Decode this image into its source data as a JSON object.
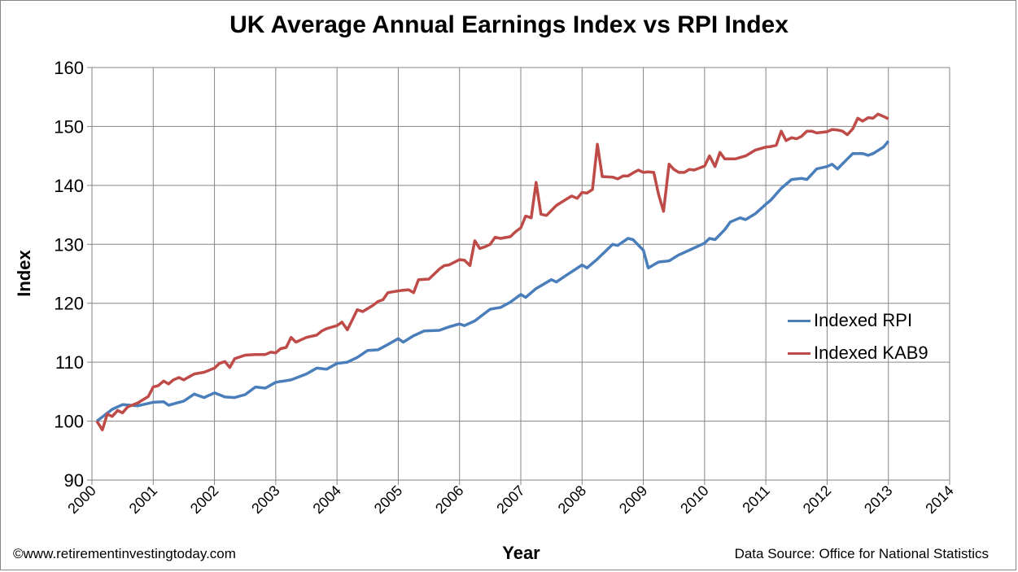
{
  "chart_data": {
    "type": "line",
    "title": "UK Average Annual Earnings Index vs RPI Index",
    "xlabel": "Year",
    "ylabel": "Index",
    "xlim": [
      2000,
      2014
    ],
    "ylim": [
      90,
      160
    ],
    "x_ticks": [
      "2000",
      "2001",
      "2002",
      "2003",
      "2004",
      "2005",
      "2006",
      "2007",
      "2008",
      "2009",
      "2010",
      "2011",
      "2012",
      "2013",
      "2014"
    ],
    "y_ticks": [
      "90",
      "100",
      "110",
      "120",
      "130",
      "140",
      "150",
      "160"
    ],
    "grid": true,
    "legend_position": "right",
    "series": [
      {
        "name": "Indexed RPI",
        "color": "#4a7ebb",
        "points": [
          [
            2000.08,
            100
          ],
          [
            2000.33,
            102
          ],
          [
            2000.5,
            102.8
          ],
          [
            2000.75,
            102.6
          ],
          [
            2001.0,
            103.2
          ],
          [
            2001.17,
            103.3
          ],
          [
            2001.25,
            102.7
          ],
          [
            2001.5,
            103.4
          ],
          [
            2001.67,
            104.6
          ],
          [
            2001.83,
            104.0
          ],
          [
            2002.0,
            104.8
          ],
          [
            2002.17,
            104.1
          ],
          [
            2002.33,
            104.0
          ],
          [
            2002.5,
            104.5
          ],
          [
            2002.67,
            105.8
          ],
          [
            2002.83,
            105.6
          ],
          [
            2003.0,
            106.6
          ],
          [
            2003.25,
            107.0
          ],
          [
            2003.5,
            108.0
          ],
          [
            2003.67,
            109.0
          ],
          [
            2003.83,
            108.8
          ],
          [
            2004.0,
            109.8
          ],
          [
            2004.17,
            110.0
          ],
          [
            2004.33,
            110.8
          ],
          [
            2004.5,
            112.0
          ],
          [
            2004.67,
            112.1
          ],
          [
            2004.83,
            113.0
          ],
          [
            2005.0,
            114.0
          ],
          [
            2005.08,
            113.4
          ],
          [
            2005.25,
            114.5
          ],
          [
            2005.42,
            115.3
          ],
          [
            2005.67,
            115.4
          ],
          [
            2005.83,
            116.0
          ],
          [
            2006.0,
            116.5
          ],
          [
            2006.08,
            116.2
          ],
          [
            2006.25,
            117.0
          ],
          [
            2006.5,
            119.0
          ],
          [
            2006.67,
            119.3
          ],
          [
            2006.83,
            120.2
          ],
          [
            2007.0,
            121.5
          ],
          [
            2007.08,
            121.0
          ],
          [
            2007.25,
            122.5
          ],
          [
            2007.5,
            124.0
          ],
          [
            2007.58,
            123.6
          ],
          [
            2007.75,
            124.8
          ],
          [
            2008.0,
            126.5
          ],
          [
            2008.08,
            126.0
          ],
          [
            2008.25,
            127.5
          ],
          [
            2008.5,
            130.0
          ],
          [
            2008.58,
            129.8
          ],
          [
            2008.75,
            131.0
          ],
          [
            2008.83,
            130.8
          ],
          [
            2009.0,
            129.0
          ],
          [
            2009.08,
            126.0
          ],
          [
            2009.25,
            127.0
          ],
          [
            2009.42,
            127.2
          ],
          [
            2009.58,
            128.2
          ],
          [
            2009.75,
            129.0
          ],
          [
            2010.0,
            130.2
          ],
          [
            2010.08,
            131.0
          ],
          [
            2010.17,
            130.8
          ],
          [
            2010.33,
            132.5
          ],
          [
            2010.42,
            133.8
          ],
          [
            2010.58,
            134.5
          ],
          [
            2010.67,
            134.2
          ],
          [
            2010.83,
            135.2
          ],
          [
            2011.0,
            136.8
          ],
          [
            2011.08,
            137.5
          ],
          [
            2011.25,
            139.5
          ],
          [
            2011.42,
            141.0
          ],
          [
            2011.58,
            141.2
          ],
          [
            2011.67,
            141.0
          ],
          [
            2011.83,
            142.8
          ],
          [
            2012.0,
            143.2
          ],
          [
            2012.08,
            143.6
          ],
          [
            2012.17,
            142.8
          ],
          [
            2012.33,
            144.5
          ],
          [
            2012.42,
            145.4
          ],
          [
            2012.58,
            145.4
          ],
          [
            2012.67,
            145.1
          ],
          [
            2012.75,
            145.4
          ],
          [
            2012.92,
            146.5
          ],
          [
            2013.0,
            147.5
          ]
        ]
      },
      {
        "name": "Indexed KAB9",
        "color": "#be4b48",
        "points": [
          [
            2000.08,
            100
          ],
          [
            2000.17,
            98.5
          ],
          [
            2000.25,
            101.2
          ],
          [
            2000.33,
            100.8
          ],
          [
            2000.42,
            101.8
          ],
          [
            2000.5,
            101.4
          ],
          [
            2000.58,
            102.4
          ],
          [
            2000.75,
            103.1
          ],
          [
            2000.92,
            104.2
          ],
          [
            2001.0,
            105.8
          ],
          [
            2001.08,
            106.0
          ],
          [
            2001.17,
            106.8
          ],
          [
            2001.25,
            106.3
          ],
          [
            2001.33,
            107.0
          ],
          [
            2001.42,
            107.4
          ],
          [
            2001.5,
            107.0
          ],
          [
            2001.58,
            107.5
          ],
          [
            2001.67,
            108.0
          ],
          [
            2001.83,
            108.3
          ],
          [
            2002.0,
            109.0
          ],
          [
            2002.08,
            109.8
          ],
          [
            2002.17,
            110.1
          ],
          [
            2002.25,
            109.1
          ],
          [
            2002.33,
            110.6
          ],
          [
            2002.5,
            111.2
          ],
          [
            2002.67,
            111.3
          ],
          [
            2002.83,
            111.3
          ],
          [
            2002.92,
            111.7
          ],
          [
            2003.0,
            111.6
          ],
          [
            2003.08,
            112.3
          ],
          [
            2003.17,
            112.5
          ],
          [
            2003.25,
            114.2
          ],
          [
            2003.33,
            113.4
          ],
          [
            2003.5,
            114.2
          ],
          [
            2003.67,
            114.6
          ],
          [
            2003.75,
            115.3
          ],
          [
            2003.83,
            115.7
          ],
          [
            2004.0,
            116.2
          ],
          [
            2004.08,
            116.8
          ],
          [
            2004.17,
            115.5
          ],
          [
            2004.25,
            117.2
          ],
          [
            2004.33,
            118.9
          ],
          [
            2004.42,
            118.6
          ],
          [
            2004.58,
            119.6
          ],
          [
            2004.67,
            120.3
          ],
          [
            2004.75,
            120.6
          ],
          [
            2004.83,
            121.8
          ],
          [
            2005.0,
            122.1
          ],
          [
            2005.08,
            122.2
          ],
          [
            2005.17,
            122.3
          ],
          [
            2005.25,
            121.8
          ],
          [
            2005.33,
            124.0
          ],
          [
            2005.5,
            124.1
          ],
          [
            2005.67,
            125.8
          ],
          [
            2005.75,
            126.4
          ],
          [
            2005.83,
            126.5
          ],
          [
            2006.0,
            127.4
          ],
          [
            2006.08,
            127.3
          ],
          [
            2006.17,
            126.4
          ],
          [
            2006.25,
            130.6
          ],
          [
            2006.33,
            129.3
          ],
          [
            2006.42,
            129.6
          ],
          [
            2006.5,
            130.0
          ],
          [
            2006.58,
            131.2
          ],
          [
            2006.67,
            131.0
          ],
          [
            2006.83,
            131.3
          ],
          [
            2006.92,
            132.2
          ],
          [
            2007.0,
            132.8
          ],
          [
            2007.08,
            134.8
          ],
          [
            2007.17,
            134.5
          ],
          [
            2007.25,
            140.5
          ],
          [
            2007.33,
            135.1
          ],
          [
            2007.42,
            134.9
          ],
          [
            2007.58,
            136.6
          ],
          [
            2007.75,
            137.7
          ],
          [
            2007.83,
            138.2
          ],
          [
            2007.92,
            137.8
          ],
          [
            2008.0,
            138.8
          ],
          [
            2008.08,
            138.7
          ],
          [
            2008.17,
            139.3
          ],
          [
            2008.25,
            147.0
          ],
          [
            2008.33,
            141.5
          ],
          [
            2008.5,
            141.4
          ],
          [
            2008.58,
            141.1
          ],
          [
            2008.67,
            141.6
          ],
          [
            2008.75,
            141.6
          ],
          [
            2008.83,
            142.1
          ],
          [
            2008.92,
            142.6
          ],
          [
            2009.0,
            142.2
          ],
          [
            2009.08,
            142.3
          ],
          [
            2009.17,
            142.2
          ],
          [
            2009.25,
            138.4
          ],
          [
            2009.33,
            135.6
          ],
          [
            2009.42,
            143.6
          ],
          [
            2009.5,
            142.7
          ],
          [
            2009.58,
            142.2
          ],
          [
            2009.67,
            142.2
          ],
          [
            2009.75,
            142.7
          ],
          [
            2009.83,
            142.6
          ],
          [
            2010.0,
            143.3
          ],
          [
            2010.08,
            145.0
          ],
          [
            2010.17,
            143.2
          ],
          [
            2010.25,
            145.6
          ],
          [
            2010.33,
            144.5
          ],
          [
            2010.5,
            144.5
          ],
          [
            2010.67,
            145.0
          ],
          [
            2010.83,
            146.0
          ],
          [
            2011.0,
            146.5
          ],
          [
            2011.08,
            146.6
          ],
          [
            2011.17,
            146.8
          ],
          [
            2011.25,
            149.2
          ],
          [
            2011.33,
            147.6
          ],
          [
            2011.42,
            148.1
          ],
          [
            2011.5,
            147.9
          ],
          [
            2011.58,
            148.3
          ],
          [
            2011.67,
            149.2
          ],
          [
            2011.75,
            149.2
          ],
          [
            2011.83,
            148.9
          ],
          [
            2012.0,
            149.1
          ],
          [
            2012.08,
            149.5
          ],
          [
            2012.17,
            149.4
          ],
          [
            2012.25,
            149.2
          ],
          [
            2012.33,
            148.6
          ],
          [
            2012.42,
            149.6
          ],
          [
            2012.5,
            151.4
          ],
          [
            2012.58,
            150.9
          ],
          [
            2012.67,
            151.5
          ],
          [
            2012.75,
            151.4
          ],
          [
            2012.83,
            152.1
          ],
          [
            2012.92,
            151.7
          ],
          [
            2013.0,
            151.3
          ]
        ]
      }
    ]
  },
  "footer": {
    "website": "©www.retirementinvestingtoday.com",
    "source": "Data Source: Office for National Statistics"
  }
}
